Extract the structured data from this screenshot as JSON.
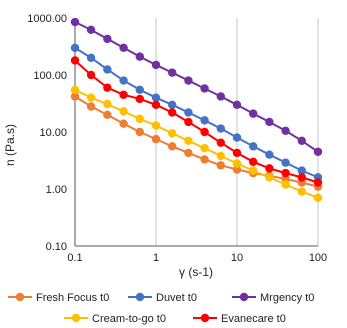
{
  "chart_data": {
    "type": "line",
    "xlabel": "γ (s-1)",
    "ylabel": "n (Pa.s)",
    "x_scale": "log",
    "y_scale": "log",
    "xlim": [
      0.1,
      100
    ],
    "ylim": [
      0.1,
      1000
    ],
    "x_ticks": [
      "0.1",
      "1",
      "10",
      "100"
    ],
    "y_ticks": [
      "0.10",
      "1.00",
      "10.00",
      "100.00",
      "1000.00"
    ],
    "grid": "vertical",
    "legend_position": "bottom",
    "x": [
      0.1,
      0.158,
      0.251,
      0.398,
      0.631,
      1,
      1.585,
      2.512,
      3.981,
      6.31,
      10,
      15.85,
      25.12,
      39.81,
      63.1,
      100
    ],
    "series": [
      {
        "name": "Fresh Focus t0",
        "color": "#ed7d31",
        "values": [
          42,
          28,
          20,
          14,
          10,
          7.5,
          5.6,
          4.3,
          3.3,
          2.6,
          2.2,
          1.9,
          1.7,
          1.5,
          1.3,
          1.1
        ]
      },
      {
        "name": "Duvet t0",
        "color": "#4472c4",
        "values": [
          300,
          200,
          125,
          80,
          55,
          40,
          30,
          22,
          16,
          11.5,
          8,
          5.6,
          4,
          2.9,
          2.1,
          1.6
        ]
      },
      {
        "name": "Mrgency t0",
        "color": "#7030a0",
        "values": [
          850,
          620,
          430,
          300,
          210,
          150,
          110,
          80,
          58,
          42,
          30,
          21,
          15,
          10.5,
          7,
          4.5
        ]
      },
      {
        "name": "Cream-to-go t0",
        "color": "#ffc000",
        "values": [
          55,
          40,
          31,
          23,
          17,
          13,
          9.5,
          7,
          5.2,
          3.8,
          2.8,
          2.1,
          1.6,
          1.2,
          0.9,
          0.7
        ]
      },
      {
        "name": "Evanecare t0",
        "color": "#ff0000",
        "values": [
          180,
          100,
          60,
          45,
          38,
          30,
          22,
          15,
          10,
          6.5,
          4.3,
          3,
          2.3,
          1.9,
          1.6,
          1.3
        ]
      }
    ]
  }
}
